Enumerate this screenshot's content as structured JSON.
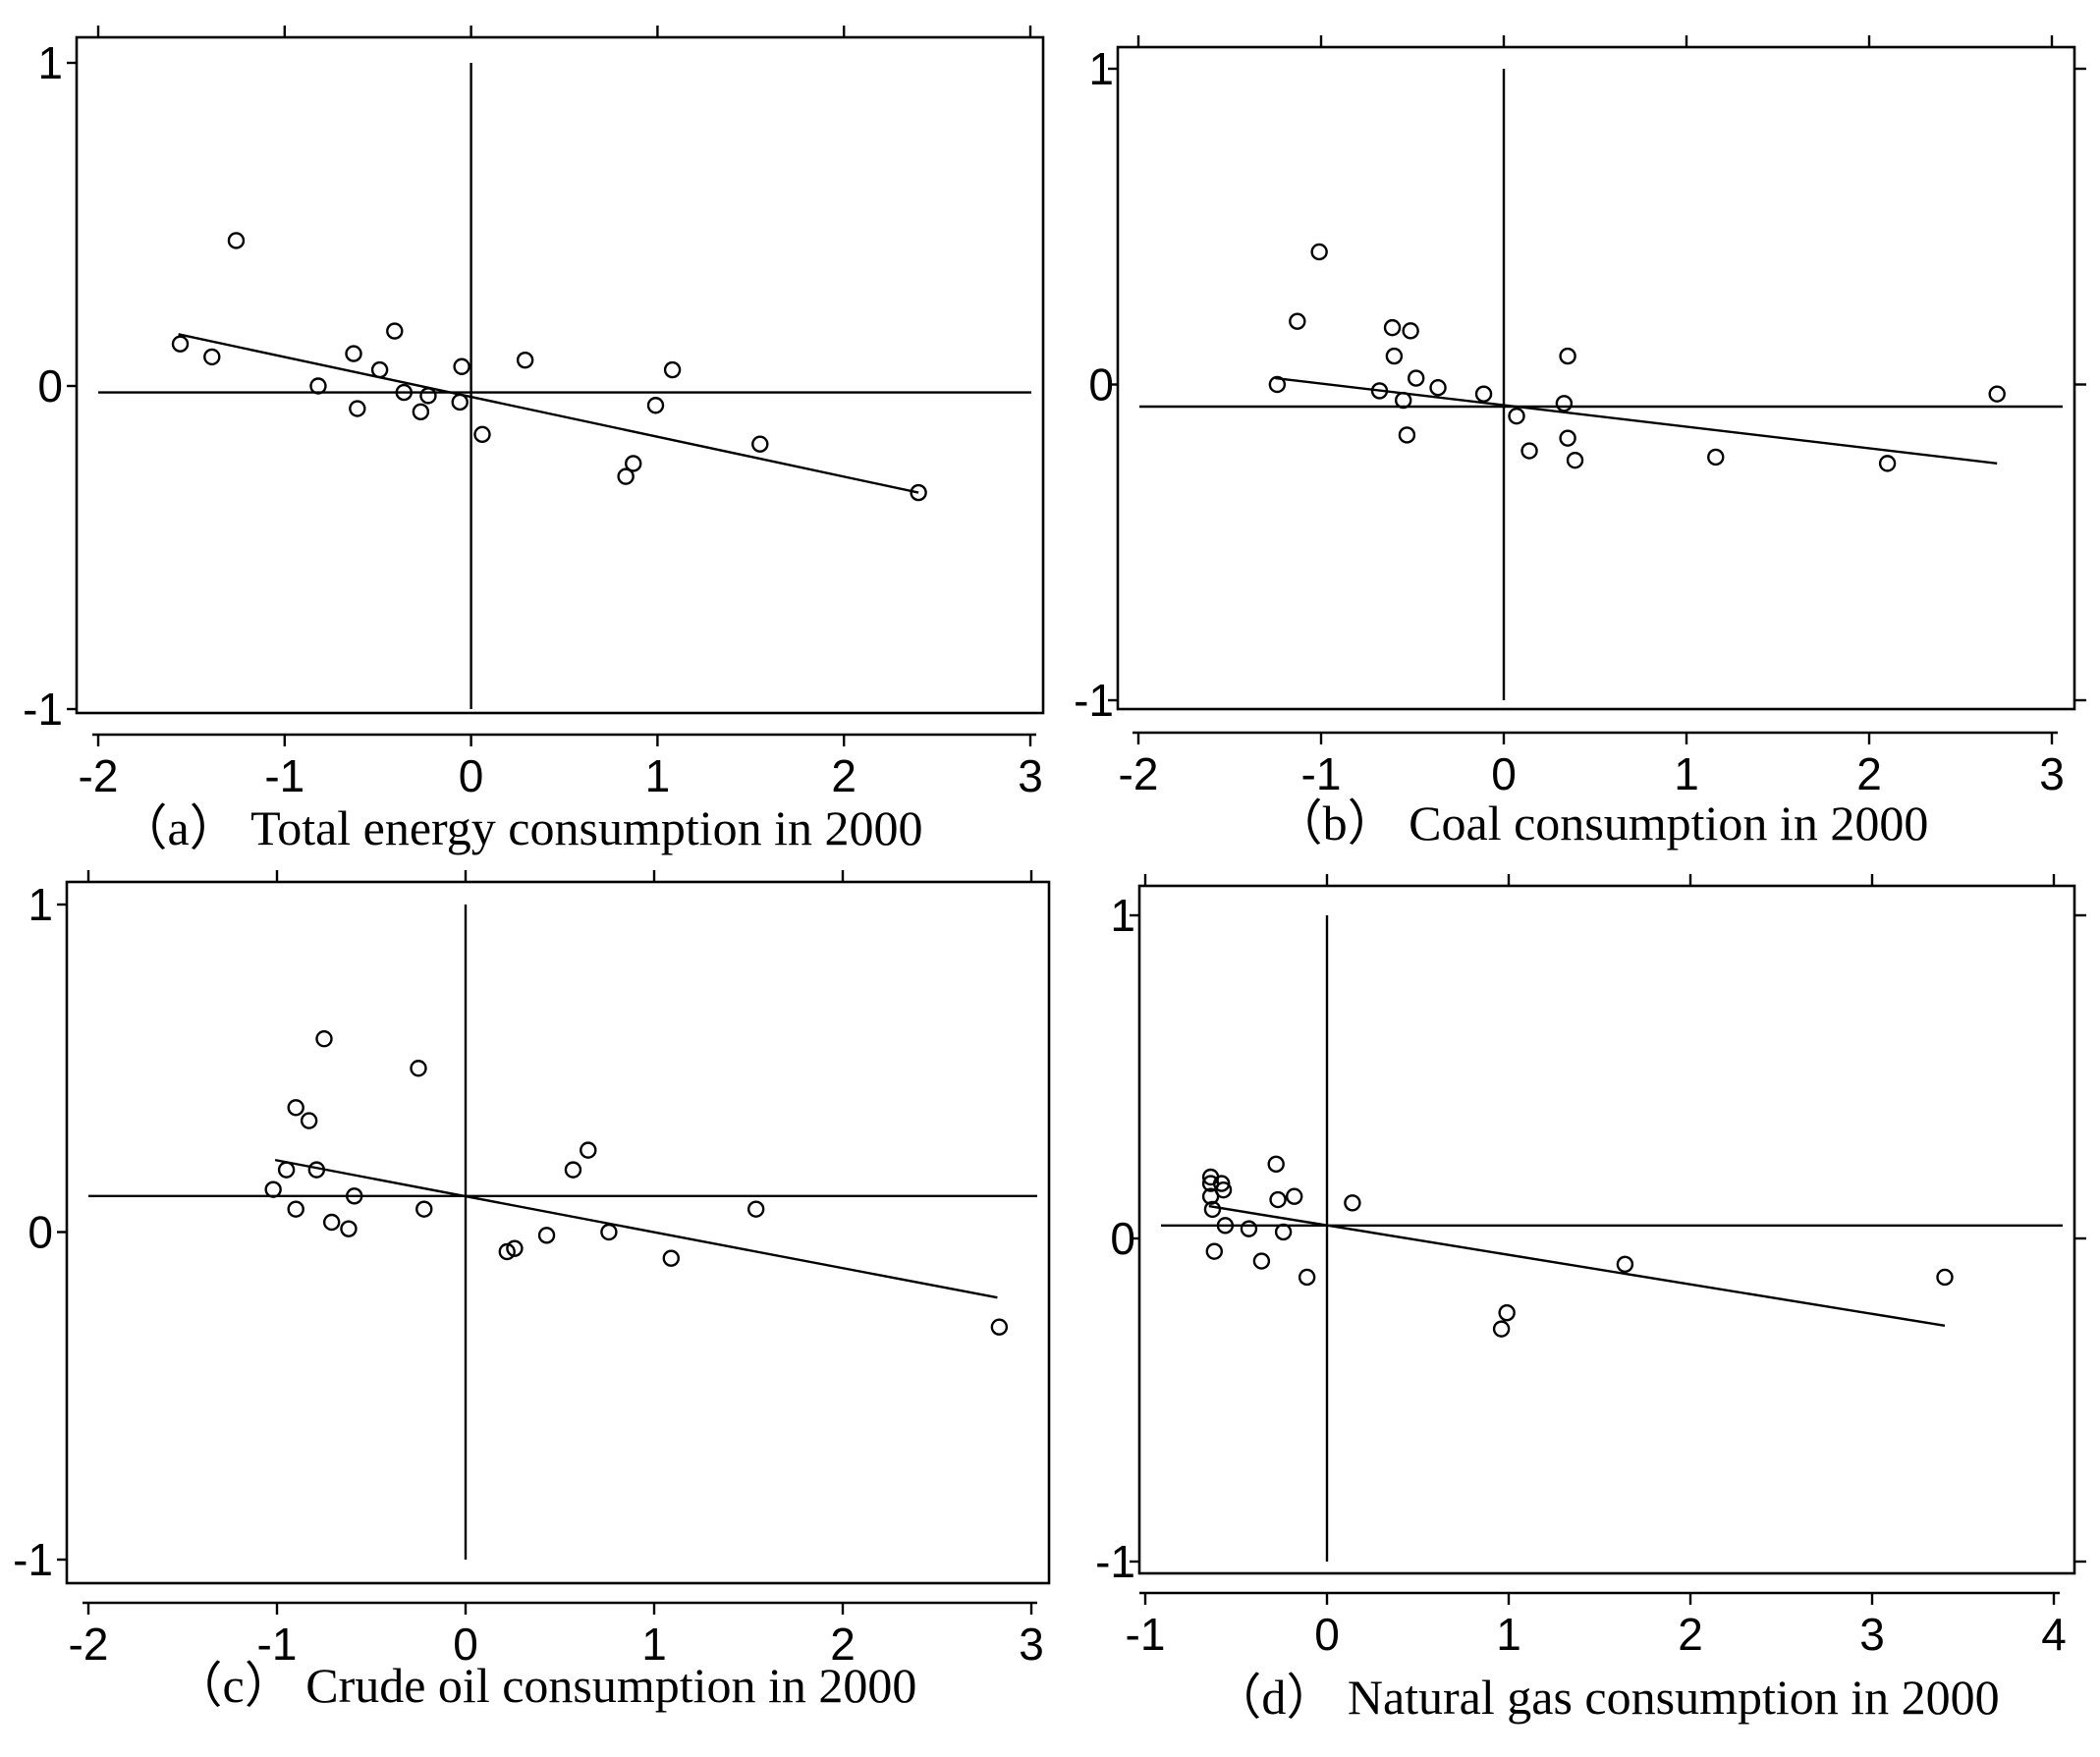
{
  "chart_data": [
    {
      "type": "scatter",
      "title": "（a） Total energy consumption in 2000",
      "xlim": [
        -2,
        3
      ],
      "ylim": [
        -1,
        1
      ],
      "xticks": [
        "-2",
        "-1",
        "0",
        "1",
        "2",
        "3"
      ],
      "yticks": [
        "1",
        "0",
        "-1"
      ],
      "ref_y": -0.02,
      "fit": {
        "x": [
          -1.57,
          2.4
        ],
        "y": [
          0.16,
          -0.33
        ]
      },
      "points": [
        [
          -1.56,
          0.13
        ],
        [
          -1.39,
          0.09
        ],
        [
          -1.26,
          0.45
        ],
        [
          -0.82,
          0.0
        ],
        [
          -0.63,
          0.1
        ],
        [
          -0.61,
          -0.07
        ],
        [
          -0.49,
          0.05
        ],
        [
          -0.41,
          0.17
        ],
        [
          -0.36,
          -0.02
        ],
        [
          -0.27,
          -0.08
        ],
        [
          -0.23,
          -0.03
        ],
        [
          -0.06,
          -0.05
        ],
        [
          -0.05,
          0.06
        ],
        [
          0.06,
          -0.15
        ],
        [
          0.29,
          0.08
        ],
        [
          0.83,
          -0.28
        ],
        [
          0.87,
          -0.24
        ],
        [
          0.99,
          -0.06
        ],
        [
          1.08,
          0.05
        ],
        [
          1.55,
          -0.18
        ],
        [
          2.4,
          -0.33
        ]
      ]
    },
    {
      "type": "scatter",
      "title": "（b） Coal consumption in 2000",
      "xlim": [
        -2,
        3
      ],
      "ylim": [
        -1,
        1
      ],
      "xticks": [
        "-2",
        "-1",
        "0",
        "1",
        "2",
        "3"
      ],
      "yticks": [
        "1",
        "0",
        "-1"
      ],
      "ref_y": -0.07,
      "fit": {
        "x": [
          -1.25,
          2.7
        ],
        "y": [
          0.02,
          -0.25
        ]
      },
      "points": [
        [
          -1.24,
          0.0
        ],
        [
          -1.13,
          0.2
        ],
        [
          -1.01,
          0.42
        ],
        [
          -0.68,
          -0.02
        ],
        [
          -0.61,
          0.18
        ],
        [
          -0.6,
          0.09
        ],
        [
          -0.55,
          -0.05
        ],
        [
          -0.53,
          -0.16
        ],
        [
          -0.51,
          0.17
        ],
        [
          -0.48,
          0.02
        ],
        [
          -0.36,
          -0.01
        ],
        [
          -0.11,
          -0.03
        ],
        [
          0.07,
          -0.1
        ],
        [
          0.14,
          -0.21
        ],
        [
          0.33,
          -0.06
        ],
        [
          0.35,
          0.09
        ],
        [
          0.35,
          -0.17
        ],
        [
          0.39,
          -0.24
        ],
        [
          1.16,
          -0.23
        ],
        [
          2.1,
          -0.25
        ],
        [
          2.7,
          -0.03
        ]
      ]
    },
    {
      "type": "scatter",
      "title": "（c） Crude oil consumption in 2000",
      "xlim": [
        -2,
        3
      ],
      "ylim": [
        -1,
        1
      ],
      "xticks": [
        "-2",
        "-1",
        "0",
        "1",
        "2",
        "3"
      ],
      "yticks": [
        "1",
        "0",
        "-1"
      ],
      "ref_y": 0.11,
      "fit": {
        "x": [
          -1.01,
          2.82
        ],
        "y": [
          0.22,
          -0.2
        ]
      },
      "points": [
        [
          -1.02,
          0.13
        ],
        [
          -0.95,
          0.19
        ],
        [
          -0.9,
          0.38
        ],
        [
          -0.9,
          0.07
        ],
        [
          -0.83,
          0.34
        ],
        [
          -0.79,
          0.19
        ],
        [
          -0.75,
          0.59
        ],
        [
          -0.71,
          0.03
        ],
        [
          -0.62,
          0.01
        ],
        [
          -0.59,
          0.11
        ],
        [
          -0.25,
          0.5
        ],
        [
          -0.22,
          0.07
        ],
        [
          0.22,
          -0.06
        ],
        [
          0.26,
          -0.05
        ],
        [
          0.43,
          -0.01
        ],
        [
          0.57,
          0.19
        ],
        [
          0.65,
          0.25
        ],
        [
          0.76,
          0.0
        ],
        [
          1.09,
          -0.08
        ],
        [
          1.54,
          0.07
        ],
        [
          2.83,
          -0.29
        ]
      ]
    },
    {
      "type": "scatter",
      "title": "（d） Natural gas consumption in 2000",
      "xlim": [
        -1,
        4
      ],
      "ylim": [
        -1,
        1
      ],
      "xticks": [
        "-1",
        "0",
        "1",
        "2",
        "3",
        "4"
      ],
      "yticks": [
        "1",
        "0",
        "-1"
      ],
      "ref_y": 0.04,
      "fit": {
        "x": [
          -0.65,
          3.4
        ],
        "y": [
          0.1,
          -0.27
        ]
      },
      "points": [
        [
          -0.64,
          0.19
        ],
        [
          -0.64,
          0.17
        ],
        [
          -0.64,
          0.13
        ],
        [
          -0.63,
          0.09
        ],
        [
          -0.62,
          -0.04
        ],
        [
          -0.58,
          0.17
        ],
        [
          -0.57,
          0.15
        ],
        [
          -0.56,
          0.04
        ],
        [
          -0.43,
          0.03
        ],
        [
          -0.36,
          -0.07
        ],
        [
          -0.28,
          0.23
        ],
        [
          -0.27,
          0.12
        ],
        [
          -0.24,
          0.02
        ],
        [
          -0.18,
          0.13
        ],
        [
          -0.11,
          -0.12
        ],
        [
          0.14,
          0.11
        ],
        [
          0.96,
          -0.28
        ],
        [
          0.99,
          -0.23
        ],
        [
          1.64,
          -0.08
        ],
        [
          3.4,
          -0.12
        ]
      ]
    }
  ]
}
